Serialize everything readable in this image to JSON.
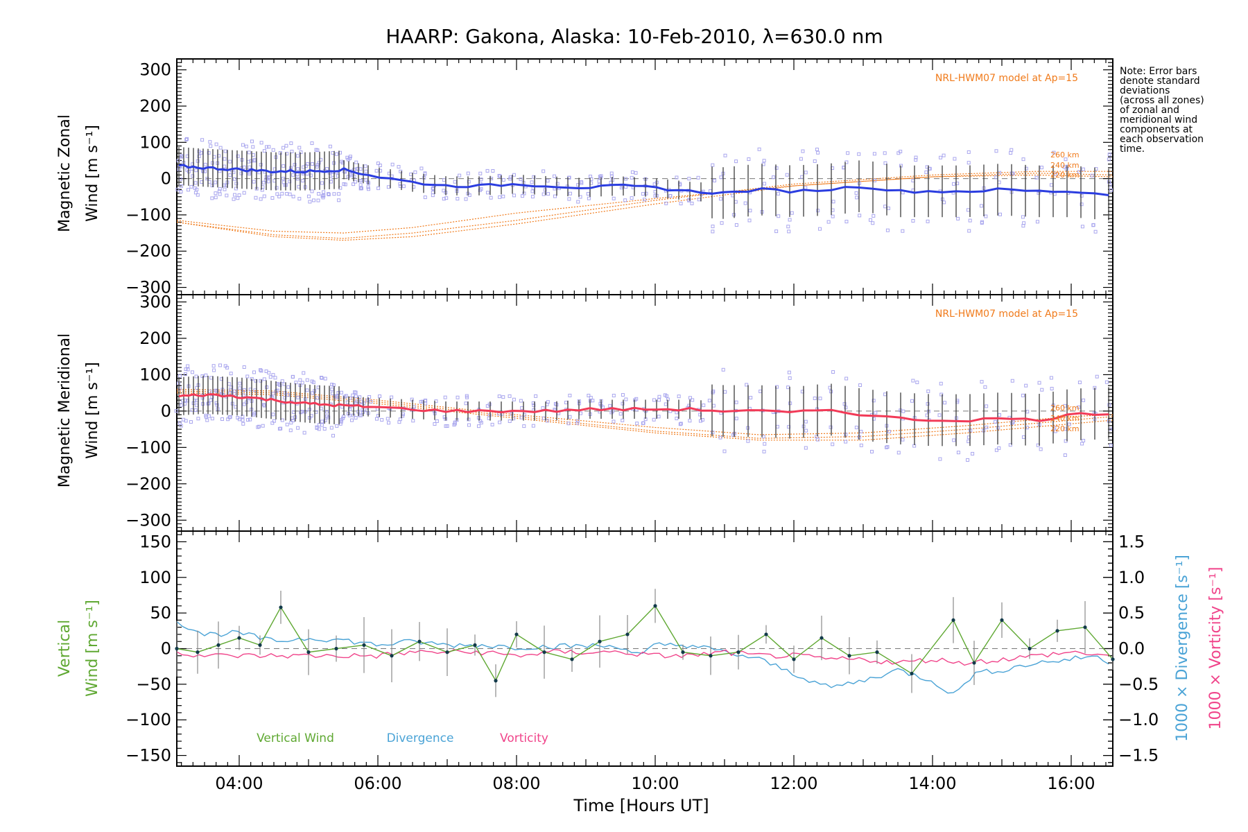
{
  "title": "HAARP: Gakona,  Alaska: 10-Feb-2010, λ=630.0 nm",
  "note": "Note: Error bars\ndenote standard\ndeviations\n(across all zones)\nof zonal and\nmeridional wind\ncomponents at\neach observation\ntime.",
  "xlabel": "Time [Hours UT]",
  "colors": {
    "zonal": "#2b3de0",
    "meridional": "#f23a57",
    "vertical": "#5fa832",
    "divergence": "#4aa3d6",
    "vorticity": "#f0448a",
    "model": "#f07a1a",
    "scatter": "#a9a6ee",
    "errorbar": "#3a3a3a"
  },
  "chart_data": [
    {
      "type": "scatter",
      "panel": "zonal",
      "ylabel": "Magnetic Zonal Wind [m s⁻¹]",
      "ylabel_lines": [
        "Magnetic Zonal",
        "Wind [m s⁻¹]"
      ],
      "annotation": "NRL-HWM07 model at Ap=15",
      "altitude_labels": [
        "260 km",
        "240 km",
        "220 km"
      ],
      "xlim": [
        3.1,
        16.6
      ],
      "ylim": [
        -320,
        330
      ],
      "yticks": [
        -300,
        -200,
        -100,
        0,
        100,
        200,
        300
      ],
      "xticks": [
        "04:00",
        "06:00",
        "08:00",
        "10:00",
        "12:00",
        "14:00",
        "16:00"
      ],
      "series": [
        {
          "x": [
            3.1,
            3.5,
            4.0,
            4.5,
            5.0,
            5.5,
            6.0,
            6.5,
            7.0,
            7.5,
            8.0,
            8.5,
            9.0,
            9.5,
            10.0,
            10.5,
            11.0,
            11.5,
            12.0,
            12.5,
            13.0,
            13.5,
            14.0,
            14.5,
            15.0,
            15.5,
            16.0,
            16.6
          ],
          "y": [
            35,
            30,
            25,
            20,
            20,
            25,
            5,
            -10,
            -20,
            -20,
            -15,
            -20,
            -25,
            -20,
            -25,
            -35,
            -40,
            -30,
            -35,
            -30,
            -20,
            -35,
            -35,
            -35,
            -30,
            -35,
            -35,
            -45
          ]
        }
      ],
      "model_curves": [
        {
          "name": "260 km",
          "x": [
            3.1,
            4.5,
            5.5,
            6.5,
            8.0,
            10.0,
            12.0,
            14.0,
            15.5,
            16.6
          ],
          "y": [
            -115,
            -145,
            -150,
            -135,
            -95,
            -55,
            -20,
            5,
            15,
            10
          ]
        },
        {
          "name": "240 km",
          "x": [
            3.1,
            4.5,
            5.5,
            6.5,
            8.0,
            10.0,
            12.0,
            14.0,
            15.5,
            16.6
          ],
          "y": [
            -120,
            -155,
            -165,
            -150,
            -115,
            -60,
            -15,
            10,
            20,
            20
          ]
        },
        {
          "name": "220 km",
          "x": [
            3.1,
            4.5,
            5.5,
            6.5,
            8.0,
            10.0,
            12.0,
            14.0,
            15.5,
            16.6
          ],
          "y": [
            -120,
            -160,
            -170,
            -160,
            -125,
            -70,
            -20,
            5,
            10,
            5
          ]
        }
      ]
    },
    {
      "type": "scatter",
      "panel": "meridional",
      "ylabel": "Magnetic Meridional Wind [m s⁻¹]",
      "ylabel_lines": [
        "Magnetic Meridional",
        "Wind [m s⁻¹]"
      ],
      "annotation": "NRL-HWM07 model at Ap=15",
      "altitude_labels": [
        "260 km",
        "240 km",
        "220 km"
      ],
      "xlim": [
        3.1,
        16.6
      ],
      "ylim": [
        -330,
        320
      ],
      "yticks": [
        -300,
        -200,
        -100,
        0,
        100,
        200,
        300
      ],
      "series": [
        {
          "x": [
            3.1,
            3.5,
            4.0,
            4.5,
            5.0,
            5.5,
            6.0,
            6.5,
            7.0,
            7.5,
            8.0,
            8.5,
            9.0,
            9.5,
            10.0,
            10.5,
            11.0,
            11.5,
            12.0,
            12.5,
            13.0,
            13.5,
            14.0,
            14.5,
            15.0,
            15.5,
            16.0,
            16.6
          ],
          "y": [
            40,
            45,
            40,
            30,
            20,
            15,
            10,
            5,
            0,
            0,
            0,
            0,
            5,
            5,
            5,
            5,
            0,
            0,
            -5,
            5,
            -10,
            -20,
            -25,
            -25,
            -20,
            -25,
            -10,
            -5
          ]
        }
      ],
      "model_curves": [
        {
          "name": "260 km",
          "x": [
            3.1,
            4.5,
            6.0,
            8.0,
            10.0,
            11.5,
            13.0,
            14.5,
            16.0,
            16.6
          ],
          "y": [
            60,
            55,
            30,
            -10,
            -45,
            -65,
            -60,
            -40,
            -15,
            -10
          ]
        },
        {
          "name": "240 km",
          "x": [
            3.1,
            4.5,
            6.0,
            8.0,
            10.0,
            11.5,
            13.0,
            14.5,
            16.0,
            16.6
          ],
          "y": [
            55,
            50,
            25,
            -15,
            -55,
            -75,
            -70,
            -50,
            -25,
            -15
          ]
        },
        {
          "name": "220 km",
          "x": [
            3.1,
            4.5,
            6.0,
            8.0,
            10.0,
            11.5,
            13.0,
            14.5,
            16.0,
            16.6
          ],
          "y": [
            50,
            45,
            20,
            -20,
            -60,
            -80,
            -80,
            -60,
            -35,
            -25
          ]
        }
      ]
    },
    {
      "type": "line",
      "panel": "vertical",
      "ylabel": "Vertical Wind [m s⁻¹]",
      "ylabel_lines": [
        "Vertical",
        "Wind [m s⁻¹]"
      ],
      "ylabel_right_1": "1000 × Divergence [s⁻¹]",
      "ylabel_right_2": "1000 × Vorticity [s⁻¹]",
      "xlim": [
        3.1,
        16.6
      ],
      "ylim": [
        -165,
        165
      ],
      "yticks": [
        -150,
        -100,
        -50,
        0,
        50,
        100,
        150
      ],
      "yticks_right": [
        "-1.5",
        "-1.0",
        "-0.5",
        "0.0",
        "0.5",
        "1.0",
        "1.5"
      ],
      "y2lim": [
        -1.65,
        1.65
      ],
      "legend": [
        "Vertical Wind",
        "Divergence",
        "Vorticity"
      ],
      "series": [
        {
          "name": "Vertical Wind",
          "x": [
            3.1,
            3.4,
            3.7,
            4.0,
            4.3,
            4.6,
            5.0,
            5.4,
            5.8,
            6.2,
            6.6,
            7.0,
            7.4,
            7.7,
            8.0,
            8.4,
            8.8,
            9.2,
            9.6,
            10.0,
            10.4,
            10.8,
            11.2,
            11.6,
            12.0,
            12.4,
            12.8,
            13.2,
            13.7,
            14.3,
            14.6,
            15.0,
            15.4,
            15.8,
            16.2,
            16.6
          ],
          "y": [
            0,
            -5,
            5,
            15,
            5,
            58,
            -5,
            0,
            5,
            -10,
            10,
            -5,
            5,
            -45,
            20,
            -5,
            -15,
            10,
            20,
            60,
            -5,
            -10,
            -5,
            20,
            -15,
            15,
            -10,
            -5,
            -35,
            40,
            -20,
            40,
            0,
            25,
            30,
            -15
          ]
        },
        {
          "name": "Divergence",
          "x": [
            3.1,
            3.5,
            4.0,
            4.5,
            5.0,
            5.5,
            6.0,
            6.5,
            7.0,
            7.5,
            8.0,
            8.5,
            9.0,
            9.5,
            9.8,
            10.0,
            10.5,
            11.0,
            11.5,
            12.0,
            12.5,
            13.0,
            13.5,
            14.0,
            14.3,
            14.6,
            15.0,
            15.5,
            16.0,
            16.3,
            16.6
          ],
          "y": [
            0.38,
            0.2,
            0.22,
            0.1,
            0.15,
            0.12,
            0.05,
            0.1,
            0.05,
            0.05,
            0.02,
            0.03,
            0.04,
            0.03,
            -0.1,
            0.05,
            0.05,
            -0.05,
            -0.15,
            -0.35,
            -0.55,
            -0.45,
            -0.3,
            -0.45,
            -0.65,
            -0.35,
            -0.3,
            -0.2,
            -0.15,
            -0.1,
            -0.2
          ]
        },
        {
          "name": "Vorticity",
          "x": [
            3.1,
            3.5,
            4.0,
            4.5,
            5.0,
            5.5,
            6.0,
            6.5,
            7.0,
            7.5,
            8.0,
            8.5,
            9.0,
            9.5,
            10.0,
            10.5,
            11.0,
            11.5,
            12.0,
            12.5,
            13.0,
            13.5,
            14.0,
            14.5,
            15.0,
            15.5,
            16.0,
            16.6
          ],
          "y": [
            -0.05,
            -0.1,
            -0.1,
            -0.1,
            -0.1,
            -0.1,
            -0.1,
            -0.05,
            -0.05,
            -0.05,
            -0.1,
            -0.05,
            -0.05,
            -0.05,
            -0.1,
            -0.1,
            -0.05,
            -0.1,
            -0.1,
            -0.15,
            -0.15,
            -0.2,
            -0.15,
            -0.2,
            -0.15,
            -0.1,
            -0.05,
            -0.1
          ]
        }
      ]
    }
  ]
}
